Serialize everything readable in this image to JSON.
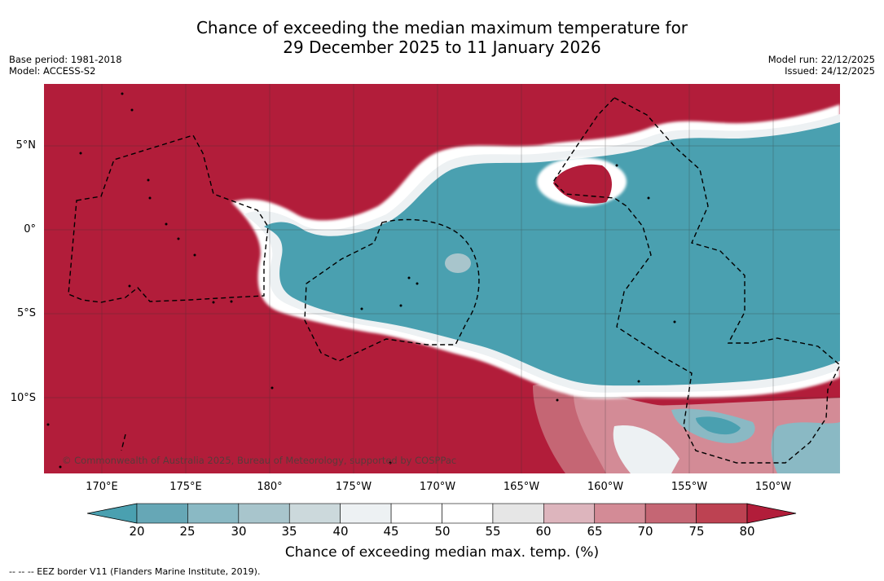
{
  "title_line1": "Chance of exceeding the median maximum temperature for",
  "title_line2": "29 December 2025 to 11 January 2026",
  "meta_left": {
    "base_period": "Base period: 1981-2018",
    "model": "Model: ACCESS-S2"
  },
  "meta_right": {
    "model_run": "Model run: 22/12/2025",
    "issued": "Issued: 24/12/2025"
  },
  "latitude_labels": [
    "5°N",
    "0°",
    "5°S",
    "10°S"
  ],
  "longitude_labels": [
    "170°E",
    "175°E",
    "180°",
    "175°W",
    "170°W",
    "165°W",
    "160°W",
    "155°W",
    "150°W"
  ],
  "copyright": "© Commonwealth of Australia 2025, Bureau of Meteorology, supported by COSPPac",
  "colorbar": {
    "ticks": [
      "20",
      "25",
      "30",
      "35",
      "40",
      "45",
      "50",
      "55",
      "60",
      "65",
      "70",
      "75",
      "80"
    ],
    "label": "Chance of exceeding median max. temp. (%)",
    "colors": [
      "#4aa0b0",
      "#66a7b6",
      "#8ab9c4",
      "#a8c5cc",
      "#ccd9dc",
      "#edf1f3",
      "#ffffff",
      "#ffffff",
      "#e6e6e6",
      "#ddb5bd",
      "#d38b96",
      "#c56674",
      "#bd4252",
      "#b21d3a"
    ]
  },
  "legend_note": "--  --  -- EEZ border V11 (Flanders Marine Institute, 2019).",
  "map_colors": {
    "high": "#b21d3a",
    "low": "#4aa0b0"
  }
}
